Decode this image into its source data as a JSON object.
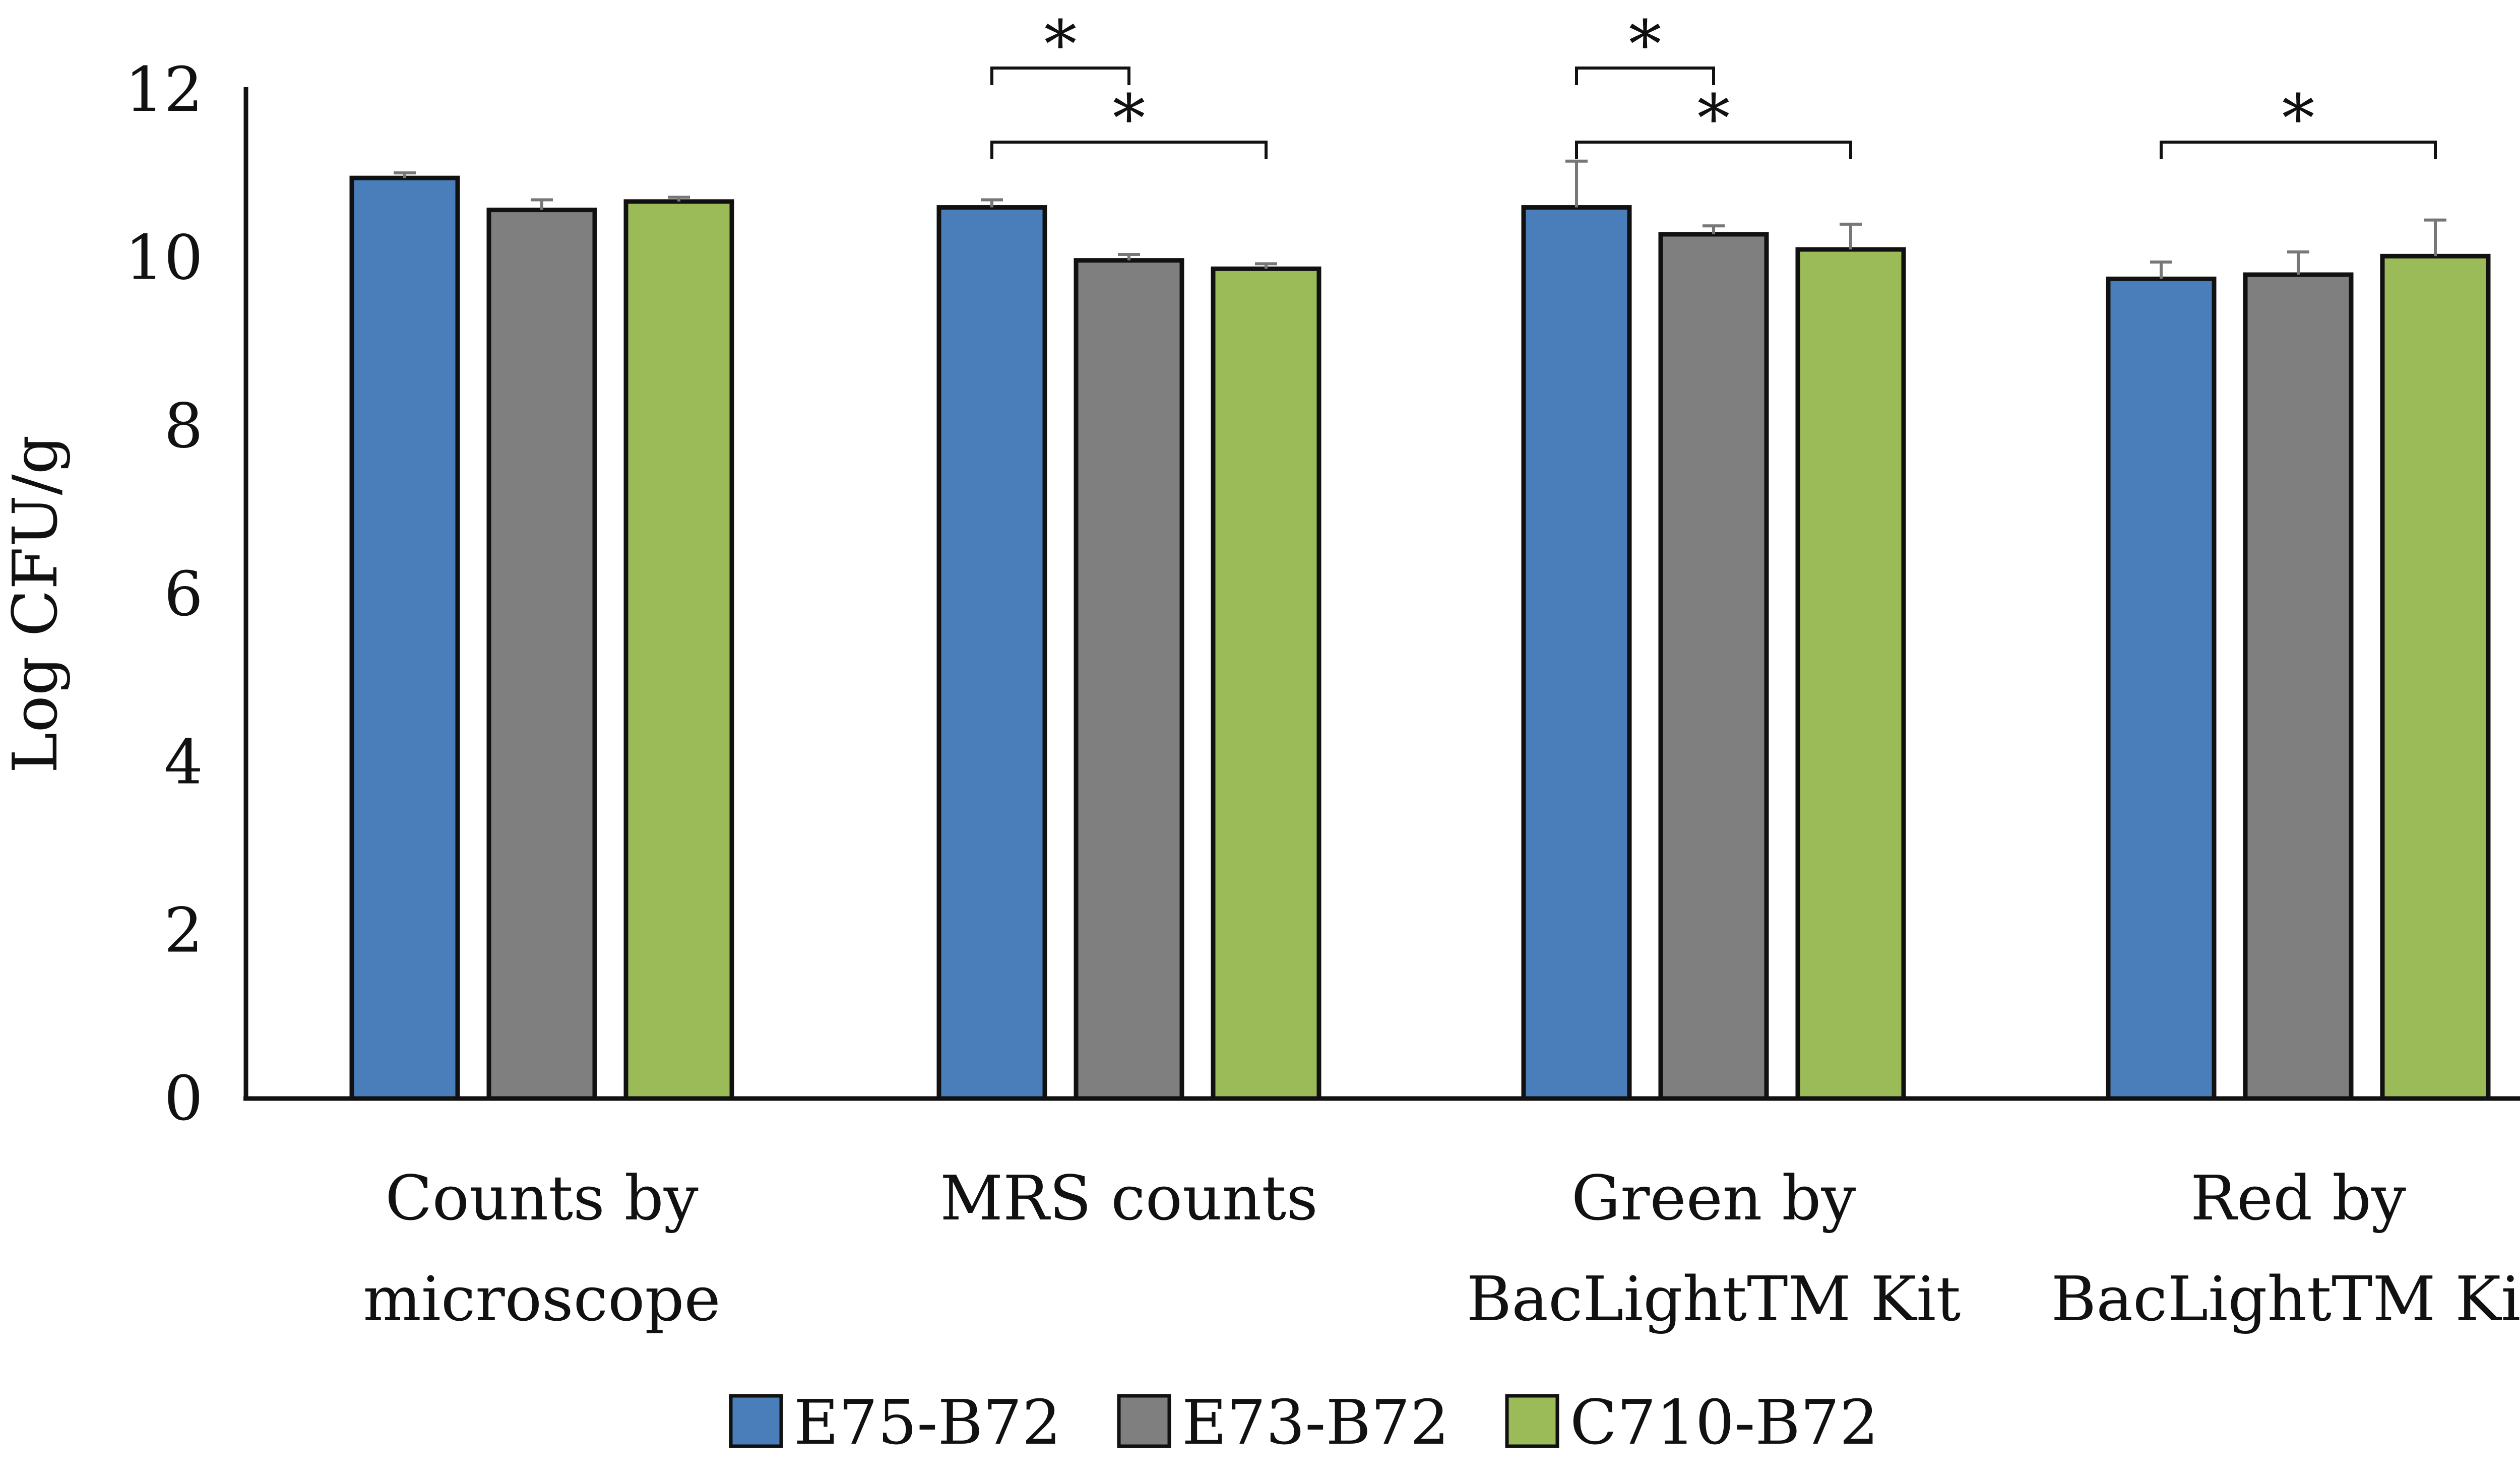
{
  "chart_data": {
    "type": "bar",
    "title": "",
    "xlabel": "",
    "ylabel": "Log CFU/g",
    "ylim": [
      0,
      12
    ],
    "yticks": [
      0,
      2,
      4,
      6,
      8,
      10,
      12
    ],
    "grid": false,
    "legend_position": "bottom",
    "categories": [
      [
        "Counts by",
        "microscope"
      ],
      [
        "MRS counts"
      ],
      [
        "Green by",
        "BacLightTM Kit"
      ],
      [
        "Red by",
        "BacLightTM Kit"
      ]
    ],
    "series": [
      {
        "name": "E75-B72",
        "color": "#4a7ebb",
        "values": [
          10.95,
          10.6,
          10.6,
          9.75
        ],
        "errors": [
          0.06,
          0.09,
          0.55,
          0.2
        ]
      },
      {
        "name": "E73-B72",
        "color": "#7f7f7f",
        "values": [
          10.57,
          9.97,
          10.28,
          9.8
        ],
        "errors": [
          0.12,
          0.07,
          0.1,
          0.27
        ]
      },
      {
        "name": "C710-B72",
        "color": "#9bbb59",
        "values": [
          10.67,
          9.87,
          10.1,
          10.02
        ],
        "errors": [
          0.05,
          0.06,
          0.3,
          0.43
        ]
      }
    ],
    "significance": [
      {
        "category": 1,
        "from": 0,
        "to": 1,
        "level": 2,
        "label": "*"
      },
      {
        "category": 1,
        "from": 0,
        "to": 2,
        "level": 1,
        "label": "*"
      },
      {
        "category": 2,
        "from": 0,
        "to": 1,
        "level": 2,
        "label": "*"
      },
      {
        "category": 2,
        "from": 0,
        "to": 2,
        "level": 1,
        "label": "*"
      },
      {
        "category": 3,
        "from": 0,
        "to": 2,
        "level": 1,
        "label": "*"
      }
    ]
  }
}
